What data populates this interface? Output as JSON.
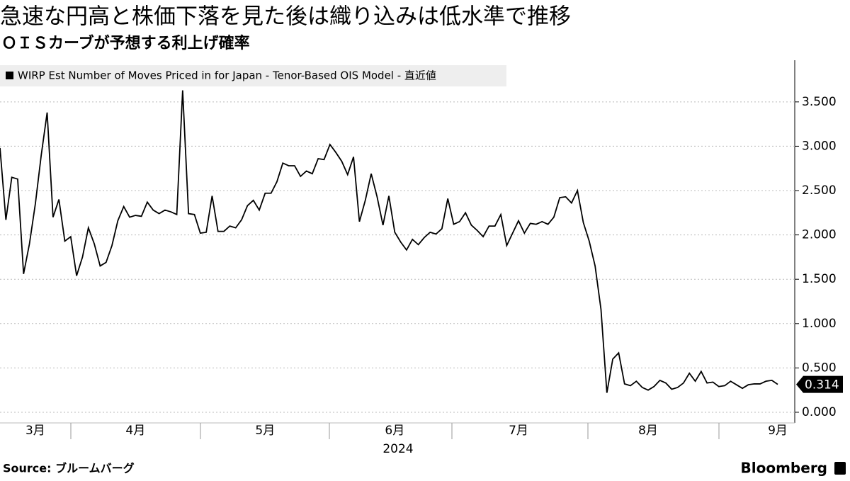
{
  "chart_data": {
    "type": "line",
    "title": "急速な円高と株価下落を見た後は織り込みは低水準で推移",
    "subtitle": "ＯＩＳカーブが予想する利上げ確率",
    "xlabel": "2024",
    "source": "Source: ブルームバーグ",
    "brand": "Bloomberg",
    "categories": [
      null,
      null,
      null,
      null,
      null,
      null,
      "3月",
      null,
      null,
      null,
      null,
      null,
      null,
      null,
      null,
      null,
      null,
      null,
      null,
      null,
      null,
      null,
      null,
      "4月",
      null,
      null,
      null,
      null,
      null,
      null,
      null,
      null,
      null,
      null,
      null,
      null,
      null,
      null,
      null,
      null,
      null,
      null,
      null,
      null,
      null,
      "5月",
      null,
      null,
      null,
      null,
      null,
      null,
      null,
      null,
      null,
      null,
      null,
      null,
      null,
      null,
      null,
      null,
      null,
      null,
      null,
      null,
      null,
      "6月",
      null,
      null,
      null,
      null,
      null,
      null,
      null,
      null,
      null,
      null,
      null,
      null,
      null,
      null,
      null,
      null,
      null,
      null,
      null,
      null,
      "7月",
      null,
      null,
      null,
      null,
      null,
      null,
      null,
      null,
      null,
      null,
      null,
      null,
      null,
      null,
      null,
      null,
      null,
      null,
      null,
      null,
      null,
      "8月",
      null,
      null,
      null,
      null,
      null,
      null,
      null,
      null,
      null,
      null,
      null,
      null,
      null,
      null,
      null,
      null,
      null,
      null,
      null,
      null,
      null,
      "9月"
    ],
    "series": [
      {
        "name": "WIRP Est Number of Moves Priced in for Japan - Tenor-Based OIS Model - 直近値",
        "color": "#000000",
        "values": [
          2.98,
          2.17,
          2.65,
          2.63,
          1.56,
          1.9,
          2.35,
          2.9,
          3.38,
          2.2,
          2.4,
          1.93,
          1.98,
          1.54,
          1.75,
          2.08,
          1.9,
          1.65,
          1.69,
          1.88,
          2.16,
          2.32,
          2.2,
          2.22,
          2.21,
          2.37,
          2.28,
          2.24,
          2.28,
          2.26,
          2.23,
          3.63,
          2.24,
          2.23,
          2.02,
          2.03,
          2.44,
          2.04,
          2.04,
          2.1,
          2.08,
          2.17,
          2.33,
          2.39,
          2.28,
          2.47,
          2.47,
          2.6,
          2.81,
          2.78,
          2.78,
          2.66,
          2.72,
          2.69,
          2.86,
          2.85,
          3.02,
          2.93,
          2.83,
          2.68,
          2.88,
          2.15,
          2.39,
          2.69,
          2.43,
          2.11,
          2.44,
          2.03,
          1.92,
          1.83,
          1.95,
          1.89,
          1.97,
          2.03,
          2.01,
          2.07,
          2.41,
          2.12,
          2.15,
          2.25,
          2.11,
          2.05,
          1.98,
          2.1,
          2.1,
          2.23,
          1.88,
          2.02,
          2.16,
          2.02,
          2.13,
          2.12,
          2.15,
          2.12,
          2.2,
          2.42,
          2.43,
          2.36,
          2.5,
          2.14,
          1.93,
          1.65,
          1.16,
          0.22,
          0.6,
          0.67,
          0.32,
          0.3,
          0.35,
          0.28,
          0.25,
          0.29,
          0.36,
          0.33,
          0.26,
          0.28,
          0.33,
          0.44,
          0.35,
          0.46,
          0.33,
          0.34,
          0.29,
          0.3,
          0.35,
          0.31,
          0.27,
          0.31,
          0.32,
          0.32,
          0.35,
          0.36,
          0.314
        ]
      }
    ],
    "ylim": [
      -0.12,
      3.97
    ],
    "yticks": [
      {
        "value": 0,
        "label": "0.000"
      },
      {
        "value": 0.5,
        "label": "0.500"
      },
      {
        "value": 1,
        "label": "1.000"
      },
      {
        "value": 1.5,
        "label": "1.500"
      },
      {
        "value": 2,
        "label": "2.000"
      },
      {
        "value": 2.5,
        "label": "2.500"
      },
      {
        "value": 3,
        "label": "3.000"
      },
      {
        "value": 3.5,
        "label": "3.500"
      }
    ],
    "grid": true
  }
}
